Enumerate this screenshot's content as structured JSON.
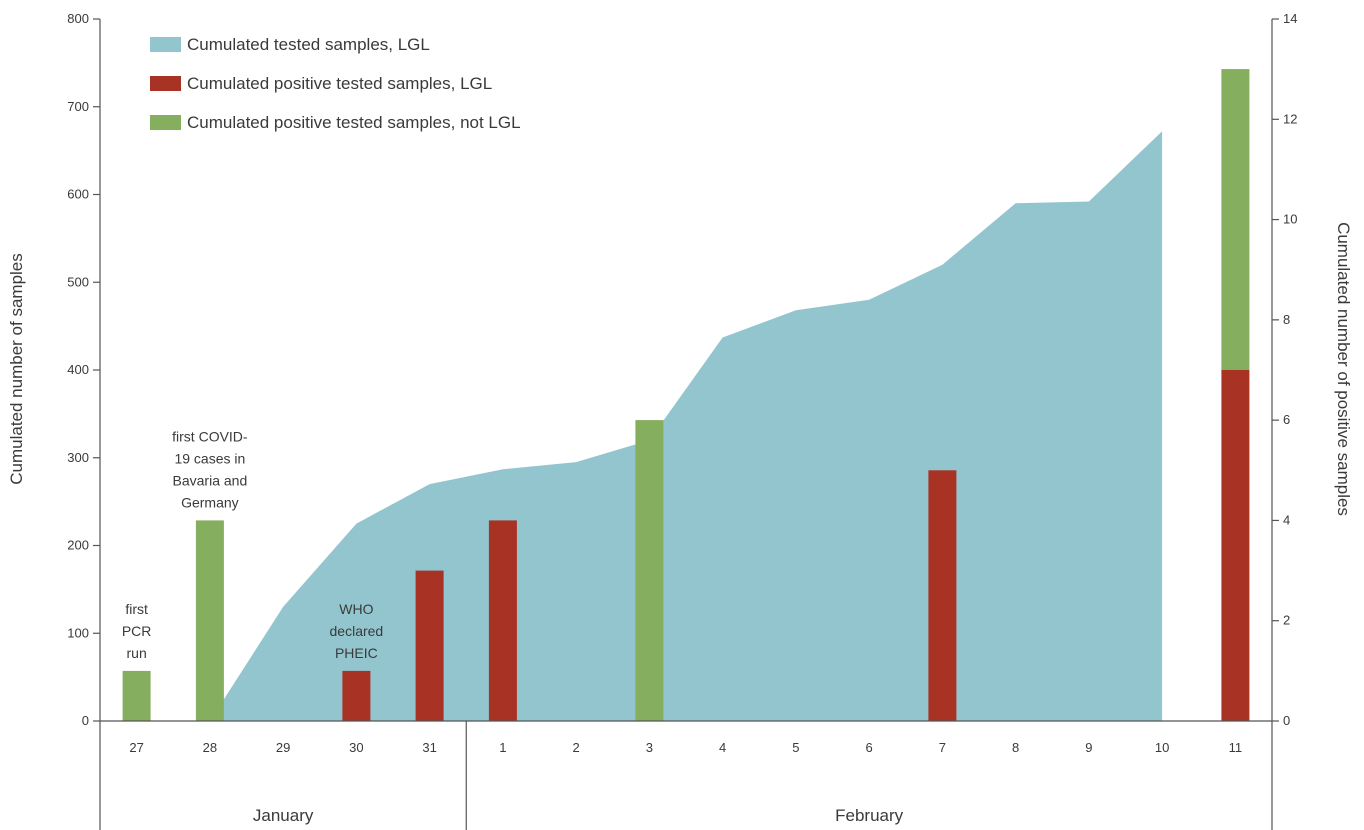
{
  "chart_data": {
    "type": "bar",
    "title": "",
    "ylabel": "Cumulated number of samples",
    "y2label": "Cumulated number of positive samples",
    "ylim": [
      0,
      800
    ],
    "y2lim": [
      0,
      14
    ],
    "yticks": [
      "0",
      "100",
      "200",
      "300",
      "400",
      "500",
      "600",
      "700",
      "800"
    ],
    "y2ticks": [
      "0",
      "2",
      "4",
      "6",
      "8",
      "10",
      "12",
      "14"
    ],
    "categories": [
      "27",
      "28",
      "29",
      "30",
      "31",
      "1",
      "2",
      "3",
      "4",
      "5",
      "6",
      "7",
      "8",
      "9",
      "10",
      "11"
    ],
    "months": [
      {
        "label": "January",
        "days": [
          "27",
          "28",
          "29",
          "30",
          "31"
        ]
      },
      {
        "label": "February",
        "days": [
          "1",
          "2",
          "3",
          "4",
          "5",
          "6",
          "7",
          "8",
          "9",
          "10",
          "11"
        ]
      }
    ],
    "legend_position": "top-left",
    "series": [
      {
        "name": "Cumulated tested samples, LGL",
        "type": "area",
        "axis": "left",
        "color": "#93c5cf",
        "x": [
          "28",
          "29",
          "30",
          "31",
          "1",
          "2",
          "3",
          "4",
          "5",
          "6",
          "7",
          "8",
          "9",
          "10"
        ],
        "values": [
          0,
          130,
          225,
          270,
          287,
          295,
          320,
          437,
          468,
          480,
          520,
          590,
          592,
          672
        ]
      },
      {
        "name": "Cumulated positive tested samples, LGL",
        "type": "bar",
        "axis": "right",
        "color": "#a83224",
        "x": [
          "30",
          "31",
          "1",
          "7",
          "11"
        ],
        "values": [
          1,
          3,
          4,
          5,
          7
        ]
      },
      {
        "name": "Cumulated positive tested samples, not LGL",
        "type": "bar",
        "axis": "right",
        "color": "#86ae5f",
        "x": [
          "27",
          "28",
          "3",
          "11"
        ],
        "values": [
          1,
          4,
          6,
          6
        ],
        "stacked_on_lgl_at": [
          "11"
        ]
      }
    ],
    "annotations": [
      {
        "x": "27",
        "lines": [
          "first",
          "PCR",
          "run"
        ]
      },
      {
        "x": "28",
        "lines": [
          "first COVID-",
          "19 cases in",
          "Bavaria and",
          "Germany"
        ]
      },
      {
        "x": "30",
        "lines": [
          "WHO",
          "declared",
          "PHEIC"
        ]
      }
    ]
  }
}
